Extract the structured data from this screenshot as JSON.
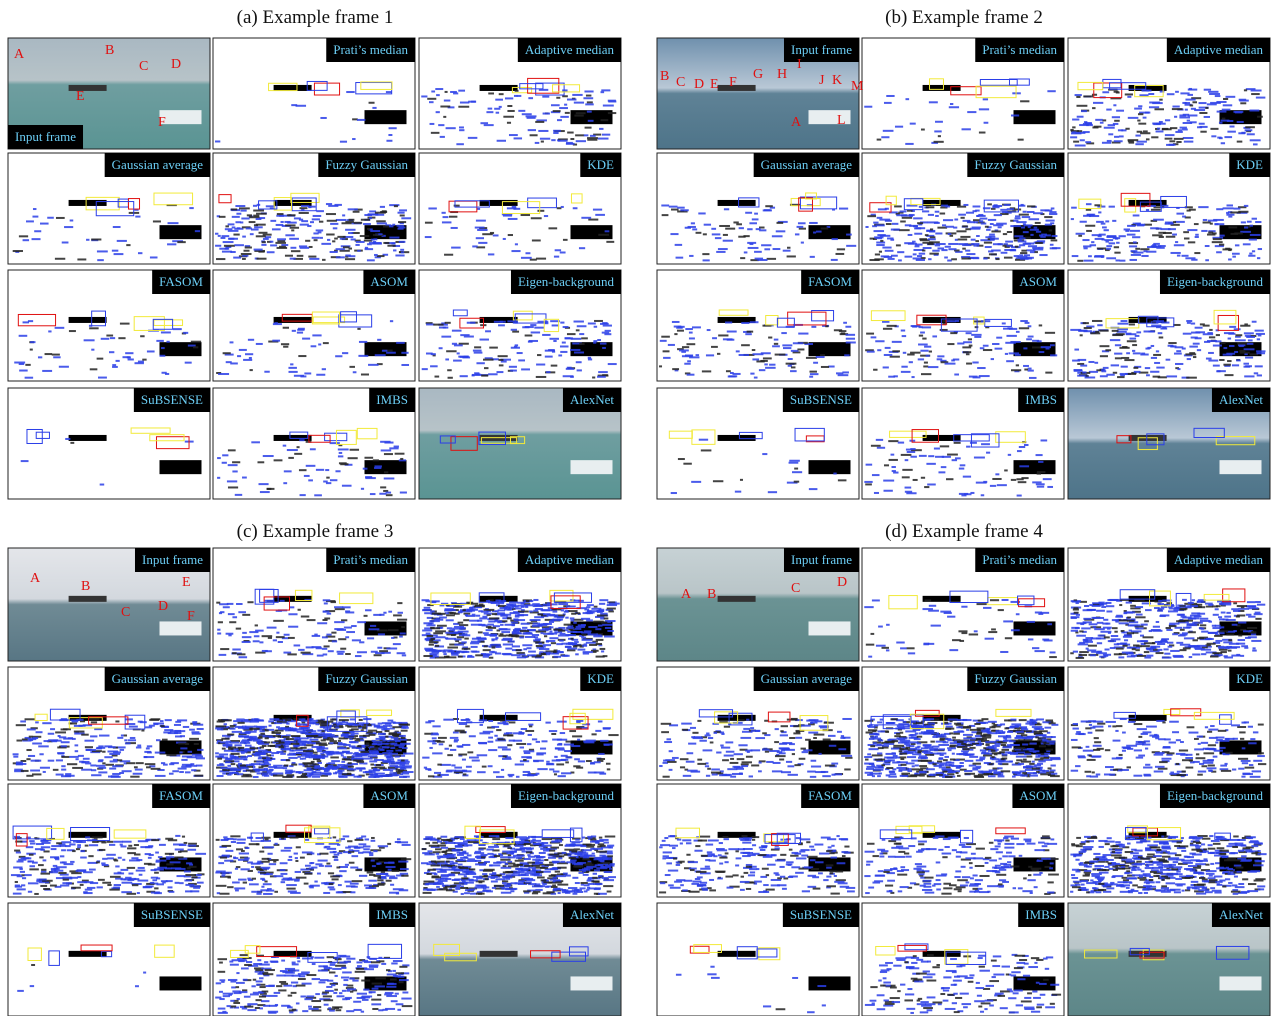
{
  "panels": [
    {
      "title": "(a) Example frame 1",
      "tiles": [
        "Input frame",
        "Prati’s median",
        "Adaptive median",
        "Gaussian average",
        "Fuzzy Gaussian",
        "KDE",
        "FASOM",
        "ASOM",
        "Eigen-background",
        "SuBSENSE",
        "IMBS",
        "AlexNet"
      ],
      "annotations": [
        "A",
        "B",
        "C",
        "D",
        "E",
        "F"
      ]
    },
    {
      "title": "(b) Example frame 2",
      "tiles": [
        "Input frame",
        "Prati’s median",
        "Adaptive median",
        "Gaussian average",
        "Fuzzy Gaussian",
        "KDE",
        "FASOM",
        "ASOM",
        "Eigen-background",
        "SuBSENSE",
        "IMBS",
        "AlexNet"
      ],
      "annotations": [
        "B",
        "C",
        "D",
        "E",
        "F",
        "G",
        "H",
        "I",
        "J",
        "K",
        "M",
        "A",
        "L"
      ]
    },
    {
      "title": "(c) Example frame 3",
      "tiles": [
        "Input frame",
        "Prati’s median",
        "Adaptive median",
        "Gaussian average",
        "Fuzzy Gaussian",
        "KDE",
        "FASOM",
        "ASOM",
        "Eigen-background",
        "SuBSENSE",
        "IMBS",
        "AlexNet"
      ],
      "annotations": [
        "A",
        "B",
        "C",
        "D",
        "E",
        "F"
      ]
    },
    {
      "title": "(d) Example frame 4",
      "tiles": [
        "Input frame",
        "Prati’s median",
        "Adaptive median",
        "Gaussian average",
        "Fuzzy Gaussian",
        "KDE",
        "FASOM",
        "ASOM",
        "Eigen-background",
        "SuBSENSE",
        "IMBS",
        "AlexNet"
      ],
      "annotations": [
        "A",
        "B",
        "C",
        "D"
      ]
    }
  ]
}
